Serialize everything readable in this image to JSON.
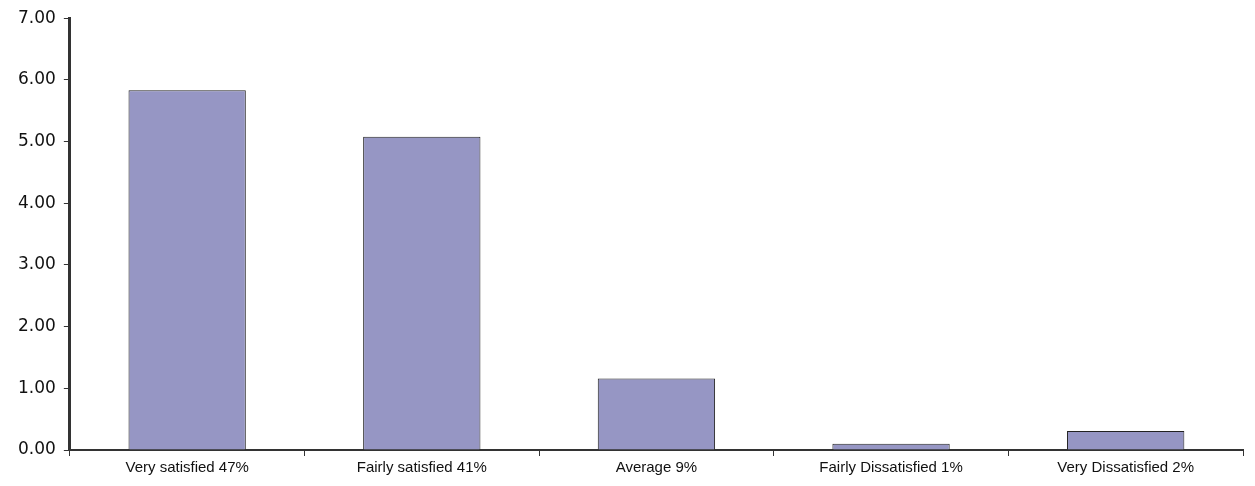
{
  "chart_data": {
    "type": "bar",
    "categories": [
      "Very satisfied 47%",
      "Fairly satisfied 41%",
      "Average 9%",
      "Fairly Dissatisfied 1%",
      "Very Dissatisfied 2%"
    ],
    "values": [
      5.83,
      5.08,
      1.16,
      0.1,
      0.31
    ],
    "color": "#9696c4",
    "ylim": [
      0,
      7
    ],
    "yticks": [
      {
        "value": 0,
        "label": "0.00"
      },
      {
        "value": 1,
        "label": "1.00"
      },
      {
        "value": 2,
        "label": "2.00"
      },
      {
        "value": 3,
        "label": "3.00"
      },
      {
        "value": 4,
        "label": "4.00"
      },
      {
        "value": 5,
        "label": "5.00"
      },
      {
        "value": 6,
        "label": "6.00"
      },
      {
        "value": 7,
        "label": "7.00"
      }
    ],
    "grid": false,
    "legend": false
  }
}
